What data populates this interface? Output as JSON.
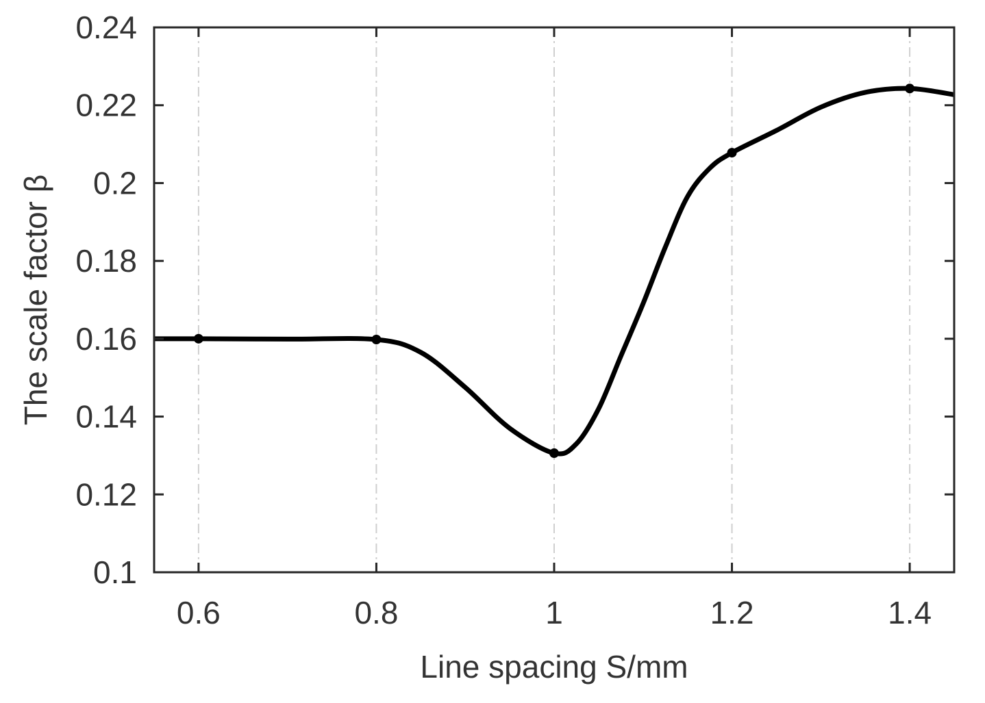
{
  "chart_data": {
    "type": "line",
    "title": "",
    "xlabel": "Line spacing S/mm",
    "ylabel": "The scale factor β",
    "xlim": [
      0.55,
      1.45
    ],
    "ylim": [
      0.1,
      0.24
    ],
    "xticks": [
      0.6,
      0.8,
      1.0,
      1.2,
      1.4
    ],
    "xtick_labels": [
      "0.6",
      "0.8",
      "1",
      "1.2",
      "1.4"
    ],
    "yticks": [
      0.1,
      0.12,
      0.14,
      0.16,
      0.18,
      0.2,
      0.22,
      0.24
    ],
    "ytick_labels": [
      "0.1",
      "0.12",
      "0.14",
      "0.16",
      "0.18",
      "0.2",
      "0.22",
      "0.24"
    ],
    "grid": "vertical dash-dot lines at x ticks",
    "series": [
      {
        "color": "#000000",
        "markers": {
          "x": [
            0.6,
            0.8,
            1.0,
            1.2,
            1.4
          ],
          "y": [
            0.16,
            0.1598,
            0.1306,
            0.2078,
            0.2243
          ]
        },
        "curve": {
          "x": [
            0.55,
            0.6,
            0.7,
            0.8,
            0.85,
            0.9,
            0.95,
            1.0,
            1.025,
            1.05,
            1.075,
            1.1,
            1.125,
            1.15,
            1.175,
            1.2,
            1.25,
            1.3,
            1.35,
            1.4,
            1.45
          ],
          "y": [
            0.16,
            0.16,
            0.1599,
            0.1598,
            0.1565,
            0.1475,
            0.137,
            0.1306,
            0.133,
            0.142,
            0.1555,
            0.169,
            0.1835,
            0.1965,
            0.2038,
            0.2078,
            0.2135,
            0.2195,
            0.2233,
            0.2243,
            0.2227
          ]
        }
      }
    ]
  }
}
